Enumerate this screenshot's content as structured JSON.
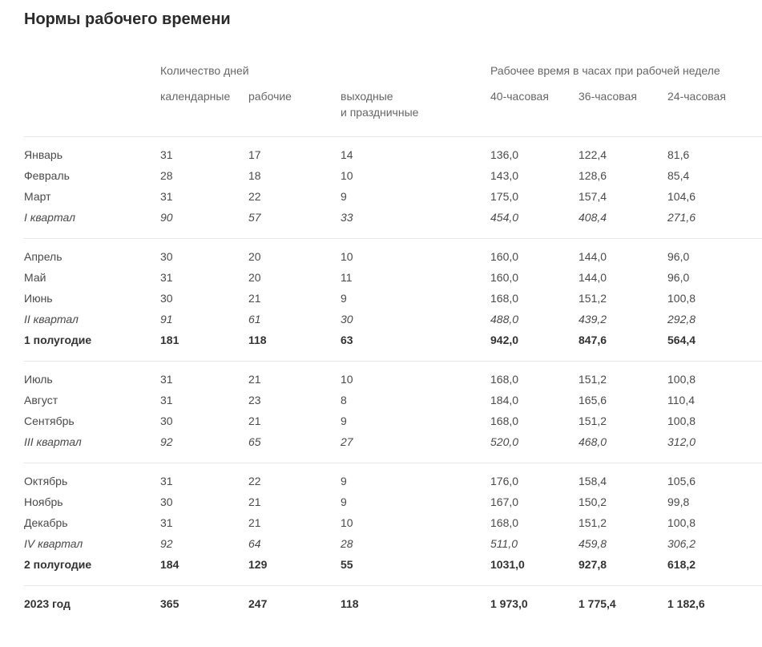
{
  "page_title": "Нормы рабочего времени",
  "colors": {
    "title_text": "#2b2b2b",
    "header_text": "#666666",
    "body_text": "#4a4a4a",
    "bold_text": "#333333",
    "separator_line": "#e6e6e6",
    "background": "#ffffff"
  },
  "table": {
    "group_headers": {
      "days": "Количество дней",
      "hours": "Рабочее время в часах при рабочей неделе"
    },
    "column_headers": [
      "календарные",
      "рабочие",
      "выходные\nи праздничные",
      "40-часовая",
      "36-часовая",
      "24-часовая"
    ],
    "sections": [
      {
        "rows": [
          {
            "label": "Январь",
            "style": "normal",
            "values": [
              "31",
              "17",
              "14",
              "136,0",
              "122,4",
              "81,6"
            ]
          },
          {
            "label": "Февраль",
            "style": "normal",
            "values": [
              "28",
              "18",
              "10",
              "143,0",
              "128,6",
              "85,4"
            ]
          },
          {
            "label": "Март",
            "style": "normal",
            "values": [
              "31",
              "22",
              "9",
              "175,0",
              "157,4",
              "104,6"
            ]
          },
          {
            "label": "I квартал",
            "style": "italic",
            "values": [
              "90",
              "57",
              "33",
              "454,0",
              "408,4",
              "271,6"
            ]
          }
        ]
      },
      {
        "rows": [
          {
            "label": "Апрель",
            "style": "normal",
            "values": [
              "30",
              "20",
              "10",
              "160,0",
              "144,0",
              "96,0"
            ]
          },
          {
            "label": "Май",
            "style": "normal",
            "values": [
              "31",
              "20",
              "11",
              "160,0",
              "144,0",
              "96,0"
            ]
          },
          {
            "label": "Июнь",
            "style": "normal",
            "values": [
              "30",
              "21",
              "9",
              "168,0",
              "151,2",
              "100,8"
            ]
          },
          {
            "label": "II квартал",
            "style": "italic",
            "values": [
              "91",
              "61",
              "30",
              "488,0",
              "439,2",
              "292,8"
            ]
          },
          {
            "label": "1 полугодие",
            "style": "bold",
            "values": [
              "181",
              "118",
              "63",
              "942,0",
              "847,6",
              "564,4"
            ]
          }
        ]
      },
      {
        "rows": [
          {
            "label": "Июль",
            "style": "normal",
            "values": [
              "31",
              "21",
              "10",
              "168,0",
              "151,2",
              "100,8"
            ]
          },
          {
            "label": "Август",
            "style": "normal",
            "values": [
              "31",
              "23",
              "8",
              "184,0",
              "165,6",
              "110,4"
            ]
          },
          {
            "label": "Сентябрь",
            "style": "normal",
            "values": [
              "30",
              "21",
              "9",
              "168,0",
              "151,2",
              "100,8"
            ]
          },
          {
            "label": "III квартал",
            "style": "italic",
            "values": [
              "92",
              "65",
              "27",
              "520,0",
              "468,0",
              "312,0"
            ]
          }
        ]
      },
      {
        "rows": [
          {
            "label": "Октябрь",
            "style": "normal",
            "values": [
              "31",
              "22",
              "9",
              "176,0",
              "158,4",
              "105,6"
            ]
          },
          {
            "label": "Ноябрь",
            "style": "normal",
            "values": [
              "30",
              "21",
              "9",
              "167,0",
              "150,2",
              "99,8"
            ]
          },
          {
            "label": "Декабрь",
            "style": "normal",
            "values": [
              "31",
              "21",
              "10",
              "168,0",
              "151,2",
              "100,8"
            ]
          },
          {
            "label": "IV квартал",
            "style": "italic",
            "values": [
              "92",
              "64",
              "28",
              "511,0",
              "459,8",
              "306,2"
            ]
          },
          {
            "label": "2 полугодие",
            "style": "bold",
            "values": [
              "184",
              "129",
              "55",
              "1031,0",
              "927,8",
              "618,2"
            ]
          }
        ]
      },
      {
        "rows": [
          {
            "label": "2023 год",
            "style": "bold",
            "values": [
              "365",
              "247",
              "118",
              "1 973,0",
              "1 775,4",
              "1 182,6"
            ]
          }
        ]
      }
    ]
  }
}
